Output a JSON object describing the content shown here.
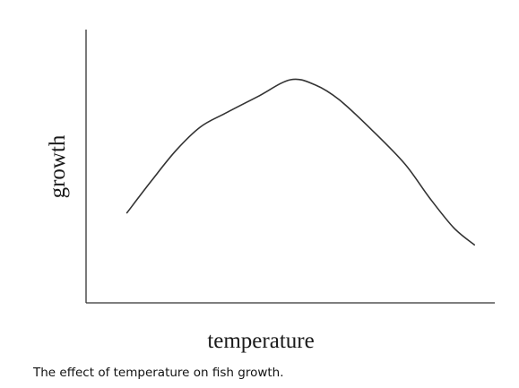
{
  "caption": "The effect of temperature on fish growth.",
  "chart_data": {
    "type": "line",
    "xlabel": "temperature",
    "ylabel": "growth",
    "title": "",
    "x_ticks": [],
    "y_ticks": [],
    "grid": false,
    "legend": "none",
    "line_color": "#333333",
    "axis_color": "#333333",
    "xlim": [
      0,
      100
    ],
    "ylim": [
      0,
      100
    ],
    "series": [
      {
        "x": [
          10,
          16,
          22,
          28,
          34,
          42,
          50,
          56,
          62,
          70,
          78,
          84,
          90,
          95
        ],
        "y": [
          21,
          40,
          58,
          72,
          80,
          90,
          100,
          97,
          88,
          70,
          50,
          30,
          12,
          2
        ]
      }
    ]
  }
}
